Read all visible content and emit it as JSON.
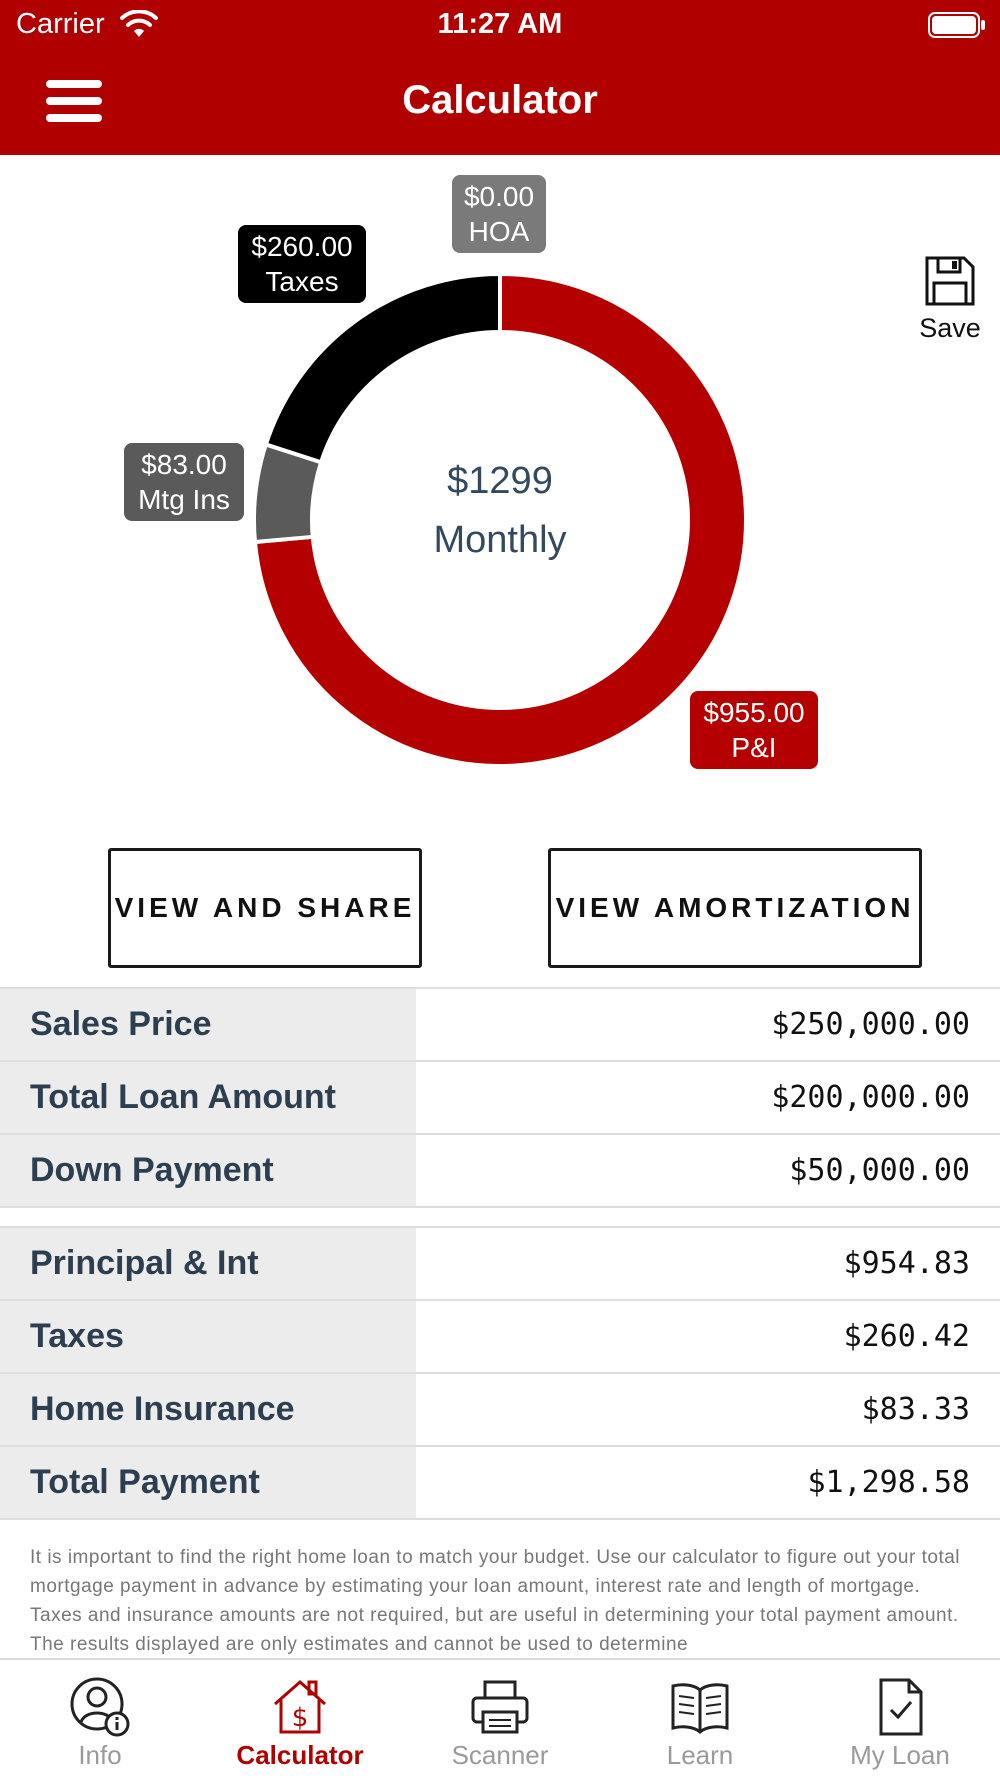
{
  "status_bar": {
    "carrier": "Carrier",
    "time": "11:27 AM"
  },
  "nav": {
    "title": "Calculator",
    "menu_icon": "hamburger-menu-icon"
  },
  "chart_data": {
    "type": "donut",
    "center_amount": "$1299",
    "center_label": "Monthly",
    "slices": [
      {
        "name": "P&I",
        "label_value": "$955.00",
        "value": 955.0,
        "color": "#b50000"
      },
      {
        "name": "Mtg Ins",
        "label_value": "$83.00",
        "value": 83.0,
        "color": "#5a5a5a"
      },
      {
        "name": "Taxes",
        "label_value": "$260.00",
        "value": 260.0,
        "color": "#000000"
      },
      {
        "name": "HOA",
        "label_value": "$0.00",
        "value": 0.0,
        "color": "#7a7a7a"
      }
    ]
  },
  "save": {
    "label": "Save",
    "icon": "floppy-disk-icon"
  },
  "buttons": {
    "share": "VIEW AND SHARE",
    "amortization": "VIEW AMORTIZATION"
  },
  "loan_table": [
    {
      "label": "Sales Price",
      "value": "$250,000.00"
    },
    {
      "label": "Total Loan Amount",
      "value": "$200,000.00"
    },
    {
      "label": "Down Payment",
      "value": "$50,000.00"
    }
  ],
  "payment_table": [
    {
      "label": "Principal & Int",
      "value": "$954.83"
    },
    {
      "label": "Taxes",
      "value": "$260.42"
    },
    {
      "label": "Home Insurance",
      "value": "$83.33"
    },
    {
      "label": "Total Payment",
      "value": "$1,298.58"
    }
  ],
  "disclaimer": "It is important to find the right home loan to match your budget. Use our calculator to figure out your total mortgage payment in advance by estimating your loan amount, interest rate and length of mortgage. Taxes and insurance amounts are not required, but are useful in determining your total payment amount. The results displayed are only estimates and cannot be used to determine",
  "tabbar": [
    {
      "label": "Info",
      "icon": "user-info-icon",
      "active": false
    },
    {
      "label": "Calculator",
      "icon": "house-dollar-icon",
      "active": true
    },
    {
      "label": "Scanner",
      "icon": "printer-icon",
      "active": false
    },
    {
      "label": "Learn",
      "icon": "open-book-icon",
      "active": false
    },
    {
      "label": "My Loan",
      "icon": "document-check-icon",
      "active": false
    }
  ],
  "colors": {
    "brand_red": "#b00000",
    "label_bg": "#ececec",
    "text_dark": "#2c3e50"
  }
}
